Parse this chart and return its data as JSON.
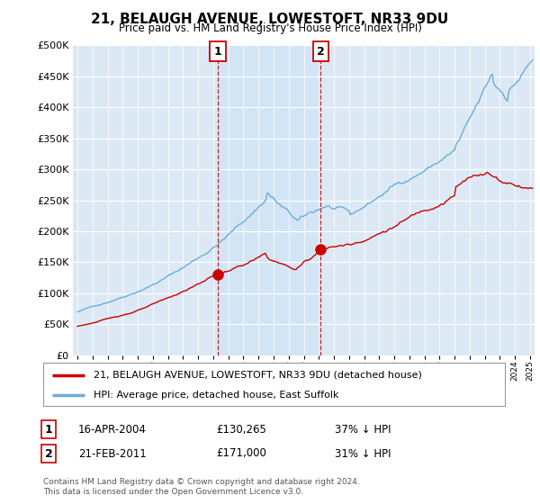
{
  "title": "21, BELAUGH AVENUE, LOWESTOFT, NR33 9DU",
  "subtitle": "Price paid vs. HM Land Registry's House Price Index (HPI)",
  "legend_label_red": "21, BELAUGH AVENUE, LOWESTOFT, NR33 9DU (detached house)",
  "legend_label_blue": "HPI: Average price, detached house, East Suffolk",
  "transaction1_date": "16-APR-2004",
  "transaction1_price": "£130,265",
  "transaction1_hpi": "37% ↓ HPI",
  "transaction1_year": 2004.29,
  "transaction1_value": 130265,
  "transaction2_date": "21-FEB-2011",
  "transaction2_price": "£171,000",
  "transaction2_hpi": "31% ↓ HPI",
  "transaction2_year": 2011.13,
  "transaction2_value": 171000,
  "footnote1": "Contains HM Land Registry data © Crown copyright and database right 2024.",
  "footnote2": "This data is licensed under the Open Government Licence v3.0.",
  "ylim": [
    0,
    500000
  ],
  "xlim_start": 1994.7,
  "xlim_end": 2025.3,
  "background_color": "#dce9f5",
  "plot_bg": "#ffffff",
  "hpi_line_color": "#6baed6",
  "price_line_color": "#cc0000",
  "vline_color": "#cc0000",
  "shade_color": "#d0e4f5"
}
